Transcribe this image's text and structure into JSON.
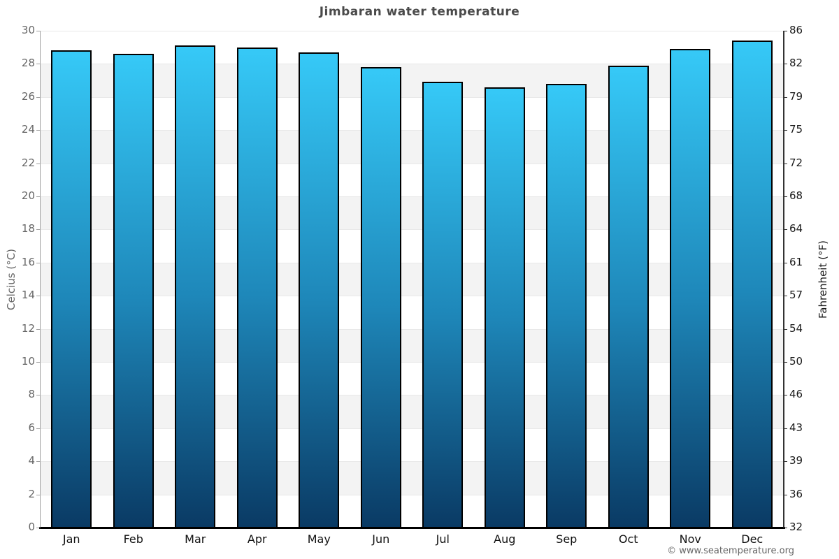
{
  "chart_data": {
    "type": "bar",
    "title": "Jimbaran water temperature",
    "categories": [
      "Jan",
      "Feb",
      "Mar",
      "Apr",
      "May",
      "Jun",
      "Jul",
      "Aug",
      "Sep",
      "Oct",
      "Nov",
      "Dec"
    ],
    "values": [
      28.8,
      28.6,
      29.1,
      29.0,
      28.7,
      27.8,
      26.9,
      26.6,
      26.8,
      27.9,
      28.9,
      29.4
    ],
    "unit": "°C",
    "ylabel_left": "Celcius (°C)",
    "ylabel_right": "Fahrenheit (°F)",
    "ylim": [
      0,
      30
    ],
    "yticks_celsius": [
      0,
      2,
      4,
      6,
      8,
      10,
      12,
      14,
      16,
      18,
      20,
      22,
      24,
      26,
      28,
      30
    ],
    "yticks_fahrenheit": [
      32,
      36,
      39,
      43,
      46,
      50,
      54,
      57,
      61,
      64,
      68,
      72,
      75,
      79,
      82,
      86
    ],
    "grid": "horizontal-bands-every-2C",
    "legend": "none",
    "bar_gradient_note": "each bar shades from light blue at top to dark navy at bottom"
  },
  "footer": {
    "copyright": "© www.seatemperature.org"
  },
  "colors": {
    "bar_top": "#36c9f7",
    "bar_mid": "#1e87b9",
    "bar_bottom": "#0a3a64",
    "bar_border": "#000000",
    "band_gray": "#f3f3f3",
    "band_white": "#ffffff",
    "grid_line": "#e8e8e8",
    "axis_left": "#a0a0a0",
    "axis_right": "#333333",
    "axis_bottom": "#000000",
    "tick_label_left": "#666666",
    "tick_label_right": "#1a1a1a",
    "title": "#4a4a4a"
  }
}
